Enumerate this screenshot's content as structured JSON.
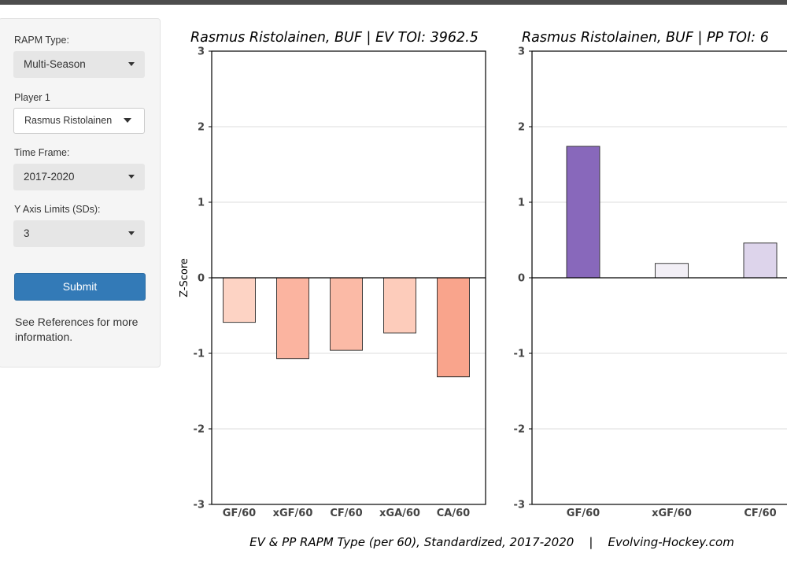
{
  "sidebar": {
    "rapm_type_label": "RAPM Type:",
    "rapm_type_value": "Multi-Season",
    "player_label": "Player 1",
    "player_value": "Rasmus Ristolainen",
    "timeframe_label": "Time Frame:",
    "timeframe_value": "2017-2020",
    "ylim_label": "Y Axis Limits (SDs):",
    "ylim_value": "3",
    "submit_label": "Submit",
    "note": "See References for more information."
  },
  "caption": "EV & PP RAPM Type (per 60), Standardized, 2017-2020    |    Evolving-Hockey.com",
  "chart_data": [
    {
      "type": "bar",
      "title": "Rasmus Ristolainen, BUF  |  EV TOI: 3962.5",
      "ylabel": "Z-Score",
      "ylim": [
        -3,
        3
      ],
      "yticks": [
        "3",
        "2",
        "1",
        "0",
        "-1",
        "-2",
        "-3"
      ],
      "grid": "horizontal",
      "categories": [
        "GF/60",
        "xGF/60",
        "CF/60",
        "xGA/60",
        "CA/60"
      ],
      "values": [
        -0.59,
        -1.07,
        -0.96,
        -0.73,
        -1.31
      ],
      "colors": [
        "#fdd3c4",
        "#fbb4a0",
        "#fbbaa6",
        "#fdccbb",
        "#f9a48c"
      ]
    },
    {
      "type": "bar",
      "title": "Rasmus Ristolainen, BUF  |  PP TOI: 6",
      "ylabel": "",
      "ylim": [
        -3,
        3
      ],
      "yticks": [
        "3",
        "2",
        "1",
        "0",
        "-1",
        "-2",
        "-3"
      ],
      "grid": "horizontal",
      "categories": [
        "GF/60",
        "xGF/60",
        "CF/60"
      ],
      "values": [
        1.74,
        0.19,
        0.46
      ],
      "colors": [
        "#8868bb",
        "#f2eff6",
        "#ddd4eb"
      ]
    }
  ]
}
